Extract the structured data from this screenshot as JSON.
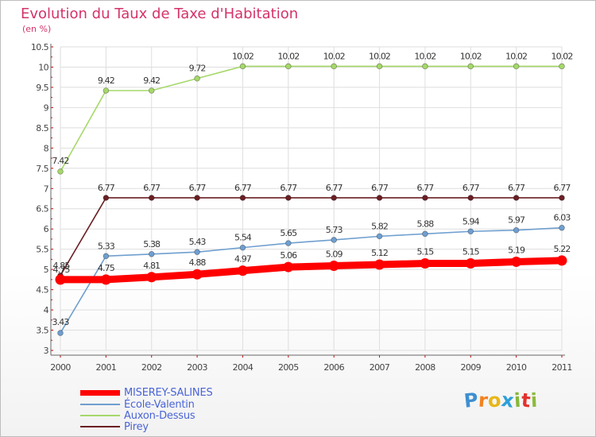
{
  "chart_data": {
    "type": "line",
    "title": "Evolution du Taux de Taxe d'Habitation",
    "unit_label": "(en %)",
    "xlabel": "",
    "ylabel": "",
    "categories": [
      "2000",
      "2001",
      "2002",
      "2003",
      "2004",
      "2005",
      "2006",
      "2007",
      "2008",
      "2009",
      "2010",
      "2011"
    ],
    "ylim": [
      3,
      10.5
    ],
    "ytick_step": 0.5,
    "yticks": [
      "3",
      "3.5",
      "4",
      "4.5",
      "5",
      "5.5",
      "6",
      "6.5",
      "7",
      "7.5",
      "8",
      "8.5",
      "9",
      "9.5",
      "10",
      "10.5"
    ],
    "grid": true,
    "series": [
      {
        "name": "Pirey",
        "color": "#6b1f24",
        "values": [
          4.85,
          6.77,
          6.77,
          6.77,
          6.77,
          6.77,
          6.77,
          6.77,
          6.77,
          6.77,
          6.77,
          6.77
        ],
        "labels": [
          "4.85",
          "6.77",
          "6.77",
          "6.77",
          "6.77",
          "6.77",
          "6.77",
          "6.77",
          "6.77",
          "6.77",
          "6.77",
          "6.77"
        ]
      },
      {
        "name": "Auxon-Dessus",
        "color": "#a6d86a",
        "values": [
          7.42,
          9.42,
          9.42,
          9.72,
          10.02,
          10.02,
          10.02,
          10.02,
          10.02,
          10.02,
          10.02,
          10.02
        ],
        "labels": [
          "7.42",
          "9.42",
          "9.42",
          "9.72",
          "10.02",
          "10.02",
          "10.02",
          "10.02",
          "10.02",
          "10.02",
          "10.02",
          "10.02"
        ]
      },
      {
        "name": "École-Valentin",
        "color": "#6f9fcf",
        "values": [
          3.43,
          5.33,
          5.38,
          5.43,
          5.54,
          5.65,
          5.73,
          5.82,
          5.88,
          5.94,
          5.97,
          6.03
        ],
        "labels": [
          "3.43",
          "5.33",
          "5.38",
          "5.43",
          "5.54",
          "5.65",
          "5.73",
          "5.82",
          "5.88",
          "5.94",
          "5.97",
          "6.03"
        ]
      },
      {
        "name": "MISEREY-SALINES",
        "color": "#ff0000",
        "values": [
          4.75,
          4.75,
          4.81,
          4.88,
          4.97,
          5.06,
          5.09,
          5.12,
          5.15,
          5.15,
          5.19,
          5.22
        ],
        "labels": [
          "4.75",
          "4.75",
          "4.81",
          "4.88",
          "4.97",
          "5.06",
          "5.09",
          "5.12",
          "5.15",
          "5.15",
          "5.19",
          "5.22"
        ]
      }
    ],
    "legend": {
      "position": "bottom-left",
      "entries": [
        "MISEREY-SALINES",
        "École-Valentin",
        "Auxon-Dessus",
        "Pirey"
      ]
    }
  },
  "branding": {
    "logo_letters": [
      "P",
      "r",
      "o",
      "x",
      "i",
      "t",
      "i"
    ],
    "logo_colors": [
      "#3e8fd1",
      "#f2831f",
      "#e8b617",
      "#2f9fd8",
      "#86b83b",
      "#e2322d",
      "#8dbb3b"
    ]
  }
}
